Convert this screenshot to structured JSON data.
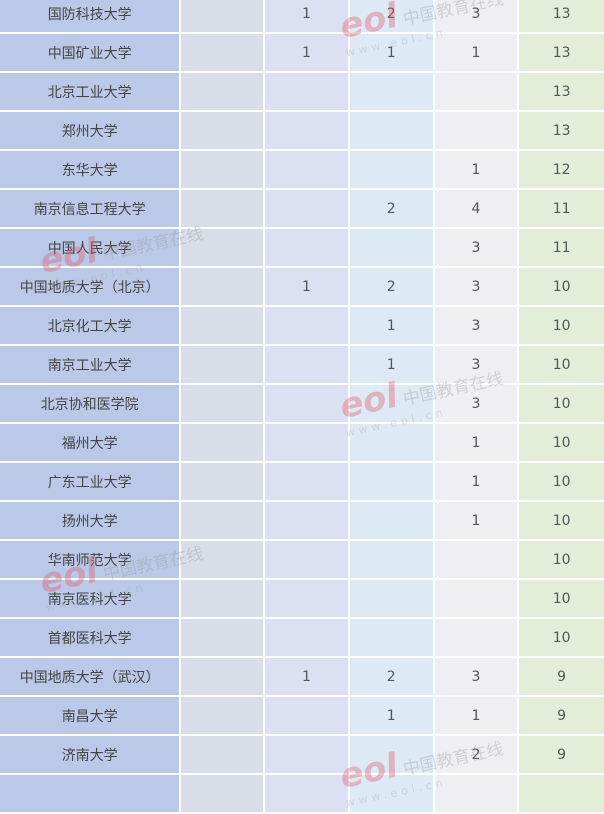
{
  "table": {
    "rows": [
      [
        "国防科技大学",
        "",
        "1",
        "2",
        "3",
        "13"
      ],
      [
        "中国矿业大学",
        "",
        "1",
        "1",
        "1",
        "13"
      ],
      [
        "北京工业大学",
        "",
        "",
        "",
        "",
        "13"
      ],
      [
        "郑州大学",
        "",
        "",
        "",
        "",
        "13"
      ],
      [
        "东华大学",
        "",
        "",
        "",
        "1",
        "12"
      ],
      [
        "南京信息工程大学",
        "",
        "",
        "2",
        "4",
        "11"
      ],
      [
        "中国人民大学",
        "",
        "",
        "",
        "3",
        "11"
      ],
      [
        "中国地质大学（北京）",
        "",
        "1",
        "2",
        "3",
        "10"
      ],
      [
        "北京化工大学",
        "",
        "",
        "1",
        "3",
        "10"
      ],
      [
        "南京工业大学",
        "",
        "",
        "1",
        "3",
        "10"
      ],
      [
        "北京协和医学院",
        "",
        "",
        "",
        "3",
        "10"
      ],
      [
        "福州大学",
        "",
        "",
        "",
        "1",
        "10"
      ],
      [
        "广东工业大学",
        "",
        "",
        "",
        "1",
        "10"
      ],
      [
        "扬州大学",
        "",
        "",
        "",
        "1",
        "10"
      ],
      [
        "华南师范大学",
        "",
        "",
        "",
        "",
        "10"
      ],
      [
        "南京医科大学",
        "",
        "",
        "",
        "",
        "10"
      ],
      [
        "首都医科大学",
        "",
        "",
        "",
        "",
        "10"
      ],
      [
        "中国地质大学（武汉）",
        "",
        "1",
        "2",
        "3",
        "9"
      ],
      [
        "南昌大学",
        "",
        "",
        "1",
        "1",
        "9"
      ],
      [
        "济南大学",
        "",
        "",
        "",
        "2",
        "9"
      ],
      [
        "",
        "",
        "",
        "",
        "",
        ""
      ]
    ]
  },
  "watermark": {
    "logo": "eol",
    "name": "中国教育在线",
    "url": "www.eol.cn"
  }
}
